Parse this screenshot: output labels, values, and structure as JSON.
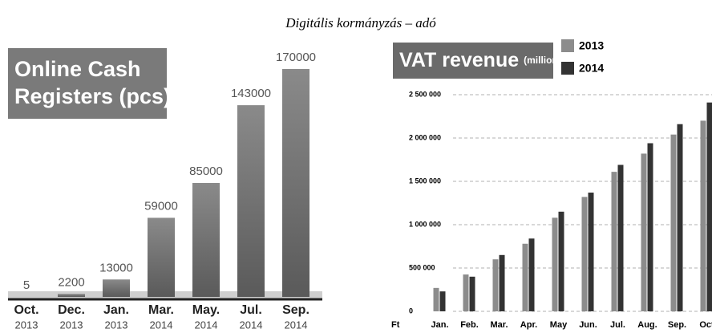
{
  "header": "Digitális kormányzás – adó",
  "chart_data": [
    {
      "type": "bar",
      "title_lines": [
        "Online Cash",
        "Registers (pcs)"
      ],
      "categories": [
        "Oct.",
        "Dec.",
        "Jan.",
        "Mar.",
        "May.",
        "Jul.",
        "Sep."
      ],
      "category_years": [
        "2013",
        "2013",
        "2013",
        "2014",
        "2014",
        "2014",
        "2014"
      ],
      "values": [
        5,
        2200,
        13000,
        59000,
        85000,
        143000,
        170000
      ],
      "color": "#6e6e6e"
    },
    {
      "type": "groupedbar",
      "title": "VAT revenue",
      "subtitle": "(million HUF)",
      "y_unit": "Ft",
      "categories": [
        "Jan.",
        "Feb.",
        "Mar.",
        "Apr.",
        "May",
        "Jun.",
        "Jul.",
        "Aug.",
        "Sep.",
        "Oct"
      ],
      "series": [
        {
          "name": "2013",
          "color": "#8c8c8c",
          "values": [
            270000,
            425000,
            600000,
            780000,
            1080000,
            1320000,
            1610000,
            1820000,
            2040000,
            2200000
          ]
        },
        {
          "name": "2014",
          "color": "#333333",
          "values": [
            230000,
            400000,
            650000,
            840000,
            1150000,
            1370000,
            1690000,
            1940000,
            2160000,
            2410000
          ]
        }
      ],
      "ylim": [
        0,
        2500000
      ],
      "yticks": [
        0,
        {
          "value": 500000,
          "label": "500 000"
        },
        {
          "value": 1000000,
          "label": "1 000 000"
        },
        {
          "value": 1500000,
          "label": "1 500 000"
        },
        {
          "value": 2000000,
          "label": "2 000 000"
        },
        {
          "value": 2500000,
          "label": "2 500 000"
        }
      ],
      "grid": true,
      "legend": "top-right"
    }
  ]
}
